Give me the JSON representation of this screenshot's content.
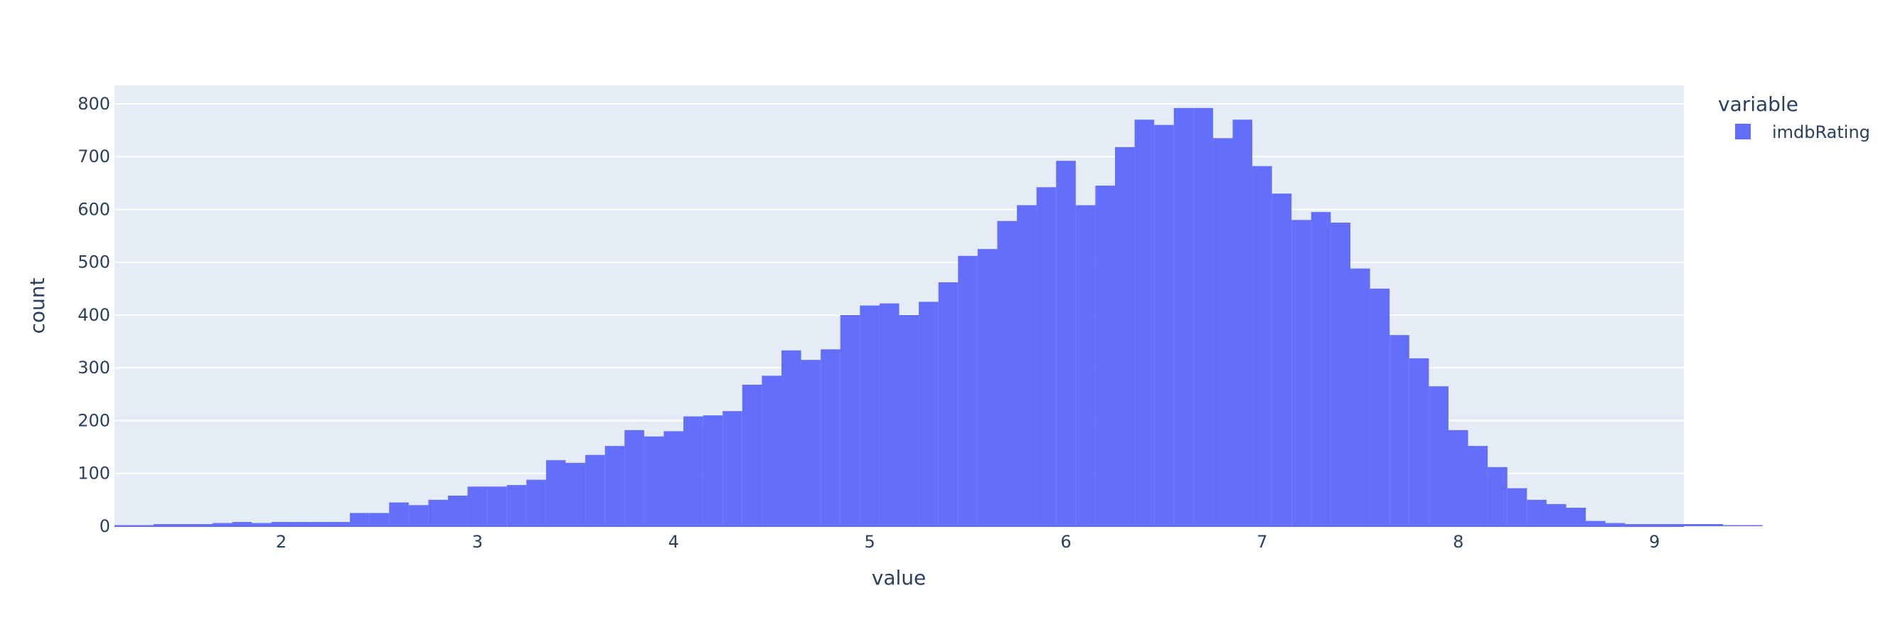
{
  "chart_data": {
    "type": "bar",
    "xlabel": "value",
    "ylabel": "count",
    "xlim": [
      1.15,
      9.15
    ],
    "ylim": [
      0,
      835
    ],
    "x_ticks": [
      2,
      3,
      4,
      5,
      6,
      7,
      8,
      9
    ],
    "y_ticks": [
      0,
      100,
      200,
      300,
      400,
      500,
      600,
      700,
      800
    ],
    "bin_width": 0.1,
    "bin_start": 1.15,
    "legend": {
      "title": "variable",
      "placement": "top-right outside"
    },
    "grid": true,
    "colors": {
      "bar": "#636efa",
      "plot_bg": "#e5ecf6",
      "grid": "#ffffff",
      "text": "#2a3f5f"
    },
    "series": [
      {
        "name": "imdbRating",
        "values": [
          2,
          2,
          4,
          4,
          4,
          6,
          8,
          6,
          8,
          8,
          8,
          8,
          25,
          25,
          45,
          40,
          50,
          58,
          75,
          75,
          78,
          88,
          125,
          120,
          135,
          152,
          182,
          170,
          180,
          208,
          210,
          218,
          268,
          285,
          333,
          315,
          335,
          400,
          418,
          422,
          400,
          425,
          462,
          512,
          525,
          578,
          608,
          642,
          692,
          608,
          645,
          718,
          770,
          760,
          792,
          792,
          735,
          770,
          682,
          630,
          580,
          595,
          575,
          488,
          450,
          362,
          318,
          265,
          182,
          152,
          112,
          72,
          50,
          42,
          35,
          10,
          6,
          4,
          4,
          4,
          4,
          4,
          2,
          2
        ]
      }
    ]
  }
}
